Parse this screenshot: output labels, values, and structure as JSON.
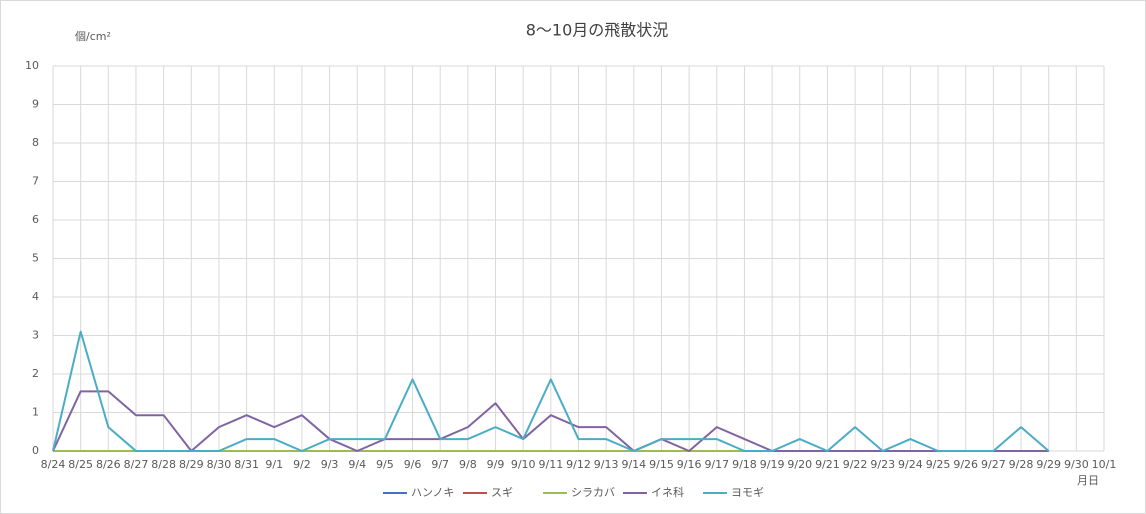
{
  "chart_data": {
    "type": "line",
    "title": "8〜10月の飛散状況",
    "y_label": "個/cm²",
    "x_label": "月日",
    "categories": [
      "8/24",
      "8/25",
      "8/26",
      "8/27",
      "8/28",
      "8/29",
      "8/30",
      "8/31",
      "9/1",
      "9/2",
      "9/3",
      "9/4",
      "9/5",
      "9/6",
      "9/7",
      "9/8",
      "9/9",
      "9/10",
      "9/11",
      "9/12",
      "9/13",
      "9/14",
      "9/15",
      "9/16",
      "9/17",
      "9/18",
      "9/19",
      "9/20",
      "9/21",
      "9/22",
      "9/23",
      "9/24",
      "9/25",
      "9/26",
      "9/27",
      "9/28",
      "9/29",
      "9/30",
      "10/1"
    ],
    "series": [
      {
        "name": "ハンノキ",
        "color": "#4472c4",
        "values": [
          0,
          0,
          0,
          0,
          0,
          0,
          0,
          0,
          0,
          0,
          0,
          0,
          0,
          0,
          0,
          0,
          0,
          0,
          0,
          0,
          0,
          0,
          0,
          0,
          0,
          0,
          0,
          0,
          0,
          0,
          0,
          0,
          0,
          0,
          0,
          0,
          0,
          null,
          null
        ]
      },
      {
        "name": "スギ",
        "color": "#c0504d",
        "values": [
          0,
          0,
          0,
          0,
          0,
          0,
          0,
          0,
          0,
          0,
          0,
          0,
          0,
          0,
          0,
          0,
          0,
          0,
          0,
          0,
          0,
          0,
          0,
          0,
          0,
          0,
          0,
          0,
          0,
          0,
          0,
          0,
          0,
          0,
          0,
          0,
          0,
          null,
          null
        ]
      },
      {
        "name": "シラカバ",
        "color": "#9bbb59",
        "values": [
          0,
          0,
          0,
          0,
          0,
          0,
          0,
          0,
          0,
          0,
          0,
          0,
          0,
          0,
          0,
          0,
          0,
          0,
          0,
          0,
          0,
          0,
          0,
          0,
          0,
          0,
          0,
          0,
          0,
          0,
          0,
          0,
          0,
          0,
          0,
          0,
          0,
          null,
          null
        ]
      },
      {
        "name": "イネ科",
        "color": "#8064a2",
        "values": [
          0,
          1.55,
          1.55,
          0.93,
          0.93,
          0,
          0.62,
          0.93,
          0.62,
          0.93,
          0.31,
          0,
          0.31,
          0.31,
          0.31,
          0.62,
          1.24,
          0.31,
          0.93,
          0.62,
          0.62,
          0,
          0.31,
          0,
          0.62,
          0.31,
          0,
          0,
          0,
          0,
          0,
          0,
          0,
          0,
          0,
          0,
          0,
          null,
          null
        ]
      },
      {
        "name": "ヨモギ",
        "color": "#4bacc6",
        "values": [
          0,
          3.1,
          0.62,
          0,
          0,
          0,
          0,
          0.31,
          0.31,
          0,
          0.31,
          0.31,
          0.31,
          1.86,
          0.31,
          0.31,
          0.62,
          0.31,
          1.86,
          0.31,
          0.31,
          0,
          0.31,
          0.31,
          0.31,
          0,
          0,
          0.31,
          0,
          0.62,
          0,
          0.31,
          0,
          0,
          0,
          0.62,
          0,
          null,
          null
        ]
      }
    ],
    "ylim": [
      0,
      10
    ],
    "yticks": [
      0,
      1,
      2,
      3,
      4,
      5,
      6,
      7,
      8,
      9,
      10
    ],
    "grid": true,
    "legend": "bottom"
  }
}
